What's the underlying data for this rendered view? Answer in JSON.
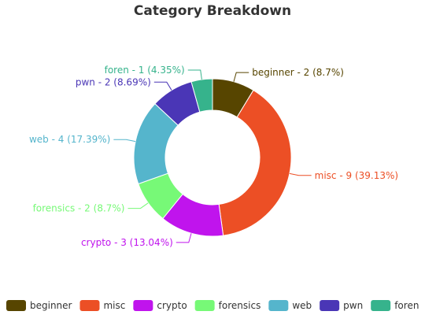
{
  "chart_data": {
    "type": "pie",
    "title": "Category Breakdown",
    "inner_radius_ratio": 0.6,
    "start": "top",
    "direction": "clockwise",
    "legend_position": "bottom",
    "slices": [
      {
        "name": "beginner",
        "value": 2,
        "percent": 8.7,
        "label": "beginner - 2 (8.7%)",
        "color": "#574500"
      },
      {
        "name": "misc",
        "value": 9,
        "percent": 39.13,
        "label": "misc - 9 (39.13%)",
        "color": "#ec4f25"
      },
      {
        "name": "crypto",
        "value": 3,
        "percent": 13.04,
        "label": "crypto - 3 (13.04%)",
        "color": "#c014ed"
      },
      {
        "name": "forensics",
        "value": 2,
        "percent": 8.7,
        "label": "forensics - 2 (8.7%)",
        "color": "#77f977"
      },
      {
        "name": "web",
        "value": 4,
        "percent": 17.39,
        "label": "web - 4 (17.39%)",
        "color": "#55b5cc"
      },
      {
        "name": "pwn",
        "value": 2,
        "percent": 8.69,
        "label": "pwn - 2 (8.69%)",
        "color": "#4a36b6"
      },
      {
        "name": "foren",
        "value": 1,
        "percent": 4.35,
        "label": "foren - 1 (4.35%)",
        "color": "#36b38c"
      }
    ]
  }
}
